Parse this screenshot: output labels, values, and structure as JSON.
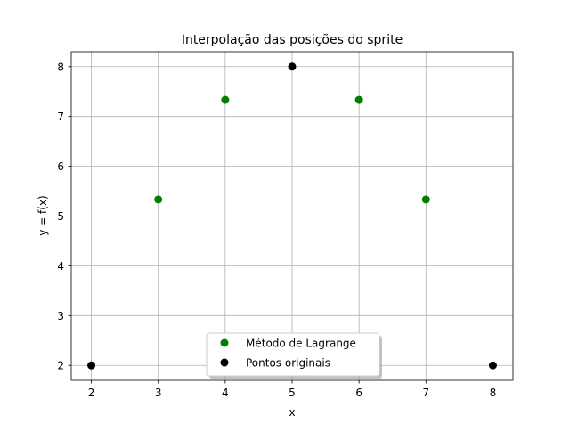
{
  "chart_data": {
    "type": "scatter",
    "title": "Interpolação das posições do sprite",
    "xlabel": "x",
    "ylabel": "y = f(x)",
    "xlim": [
      1.7,
      8.3
    ],
    "ylim": [
      1.7,
      8.3
    ],
    "xticks": [
      2,
      3,
      4,
      5,
      6,
      7,
      8
    ],
    "yticks": [
      2,
      3,
      4,
      5,
      6,
      7,
      8
    ],
    "grid": true,
    "legend": {
      "position": "lower center",
      "shadow": true,
      "entries": [
        "Método de Lagrange",
        "Pontos originais"
      ]
    },
    "series": [
      {
        "name": "Método de Lagrange",
        "color": "#008000",
        "x": [
          3,
          4,
          6,
          7
        ],
        "y": [
          5.333,
          7.333,
          7.333,
          5.333
        ]
      },
      {
        "name": "Pontos originais",
        "color": "#000000",
        "x": [
          2,
          5,
          8
        ],
        "y": [
          2,
          8,
          2
        ]
      }
    ]
  }
}
